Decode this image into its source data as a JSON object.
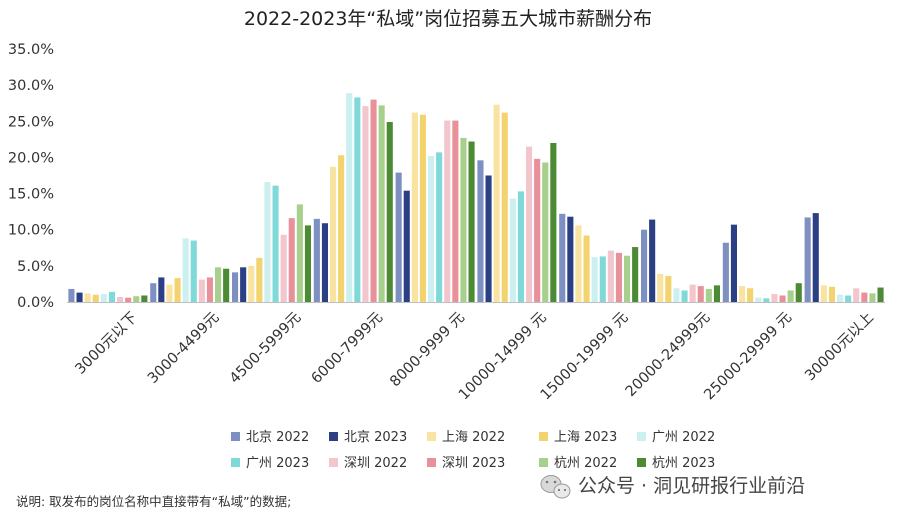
{
  "chart_data": {
    "type": "bar",
    "title": "2022-2023年“私域”岗位招募五大城市薪酬分布",
    "xlabel": "",
    "ylabel": "",
    "ylim": [
      0,
      35
    ],
    "y_ticks": [
      "0.0%",
      "5.0%",
      "10.0%",
      "15.0%",
      "20.0%",
      "25.0%",
      "30.0%",
      "35.0%"
    ],
    "grid": false,
    "legend_position": "bottom",
    "categories": [
      "3000元以下",
      "3000-4499元",
      "4500-5999元",
      "6000-7999元",
      "8000-9999 元",
      "10000-14999 元",
      "15000-19999 元",
      "20000-24999元",
      "25000-29999 元",
      "30000元以上"
    ],
    "series": [
      {
        "name": "北京 2022",
        "color": "#7e8fc1",
        "values": [
          1.8,
          2.6,
          4.1,
          11.5,
          17.9,
          19.6,
          12.2,
          10.0,
          8.2,
          11.7
        ]
      },
      {
        "name": "北京 2023",
        "color": "#2b3f84",
        "values": [
          1.3,
          3.4,
          4.8,
          10.9,
          15.4,
          17.5,
          11.8,
          11.4,
          10.7,
          12.3
        ]
      },
      {
        "name": "上海 2022",
        "color": "#f8e3a0",
        "values": [
          1.2,
          2.4,
          5.0,
          18.7,
          26.2,
          27.3,
          10.6,
          3.9,
          2.2,
          2.3
        ]
      },
      {
        "name": "上海 2023",
        "color": "#f3d36d",
        "values": [
          1.0,
          3.3,
          6.1,
          20.3,
          25.9,
          26.2,
          9.2,
          3.6,
          1.9,
          2.1
        ]
      },
      {
        "name": "广州 2022",
        "color": "#ccf0f0",
        "values": [
          1.1,
          8.8,
          16.6,
          28.9,
          20.2,
          14.3,
          6.2,
          1.9,
          0.6,
          1.0
        ]
      },
      {
        "name": "广州 2023",
        "color": "#7fd9d9",
        "values": [
          1.4,
          8.5,
          16.1,
          28.3,
          20.7,
          15.3,
          6.3,
          1.6,
          0.5,
          0.9
        ]
      },
      {
        "name": "深圳 2022",
        "color": "#f2c6cc",
        "values": [
          0.7,
          3.1,
          9.3,
          27.1,
          25.1,
          21.5,
          7.1,
          2.4,
          1.1,
          1.9
        ]
      },
      {
        "name": "深圳 2023",
        "color": "#e8919a",
        "values": [
          0.6,
          3.4,
          11.6,
          28.0,
          25.1,
          19.8,
          6.8,
          2.2,
          0.9,
          1.3
        ]
      },
      {
        "name": "杭州 2022",
        "color": "#a8d08d",
        "values": [
          0.8,
          4.8,
          13.5,
          27.2,
          22.7,
          19.3,
          6.4,
          1.8,
          1.6,
          1.2
        ]
      },
      {
        "name": "杭州 2023",
        "color": "#4d8a34",
        "values": [
          0.9,
          4.6,
          10.6,
          24.9,
          22.2,
          22.0,
          7.6,
          2.3,
          2.6,
          2.0
        ]
      }
    ],
    "footnote": "说明: 取发布的岗位名称中直接带有“私域”的数据;",
    "watermark": "公众号 · 洞见研报行业前沿"
  }
}
